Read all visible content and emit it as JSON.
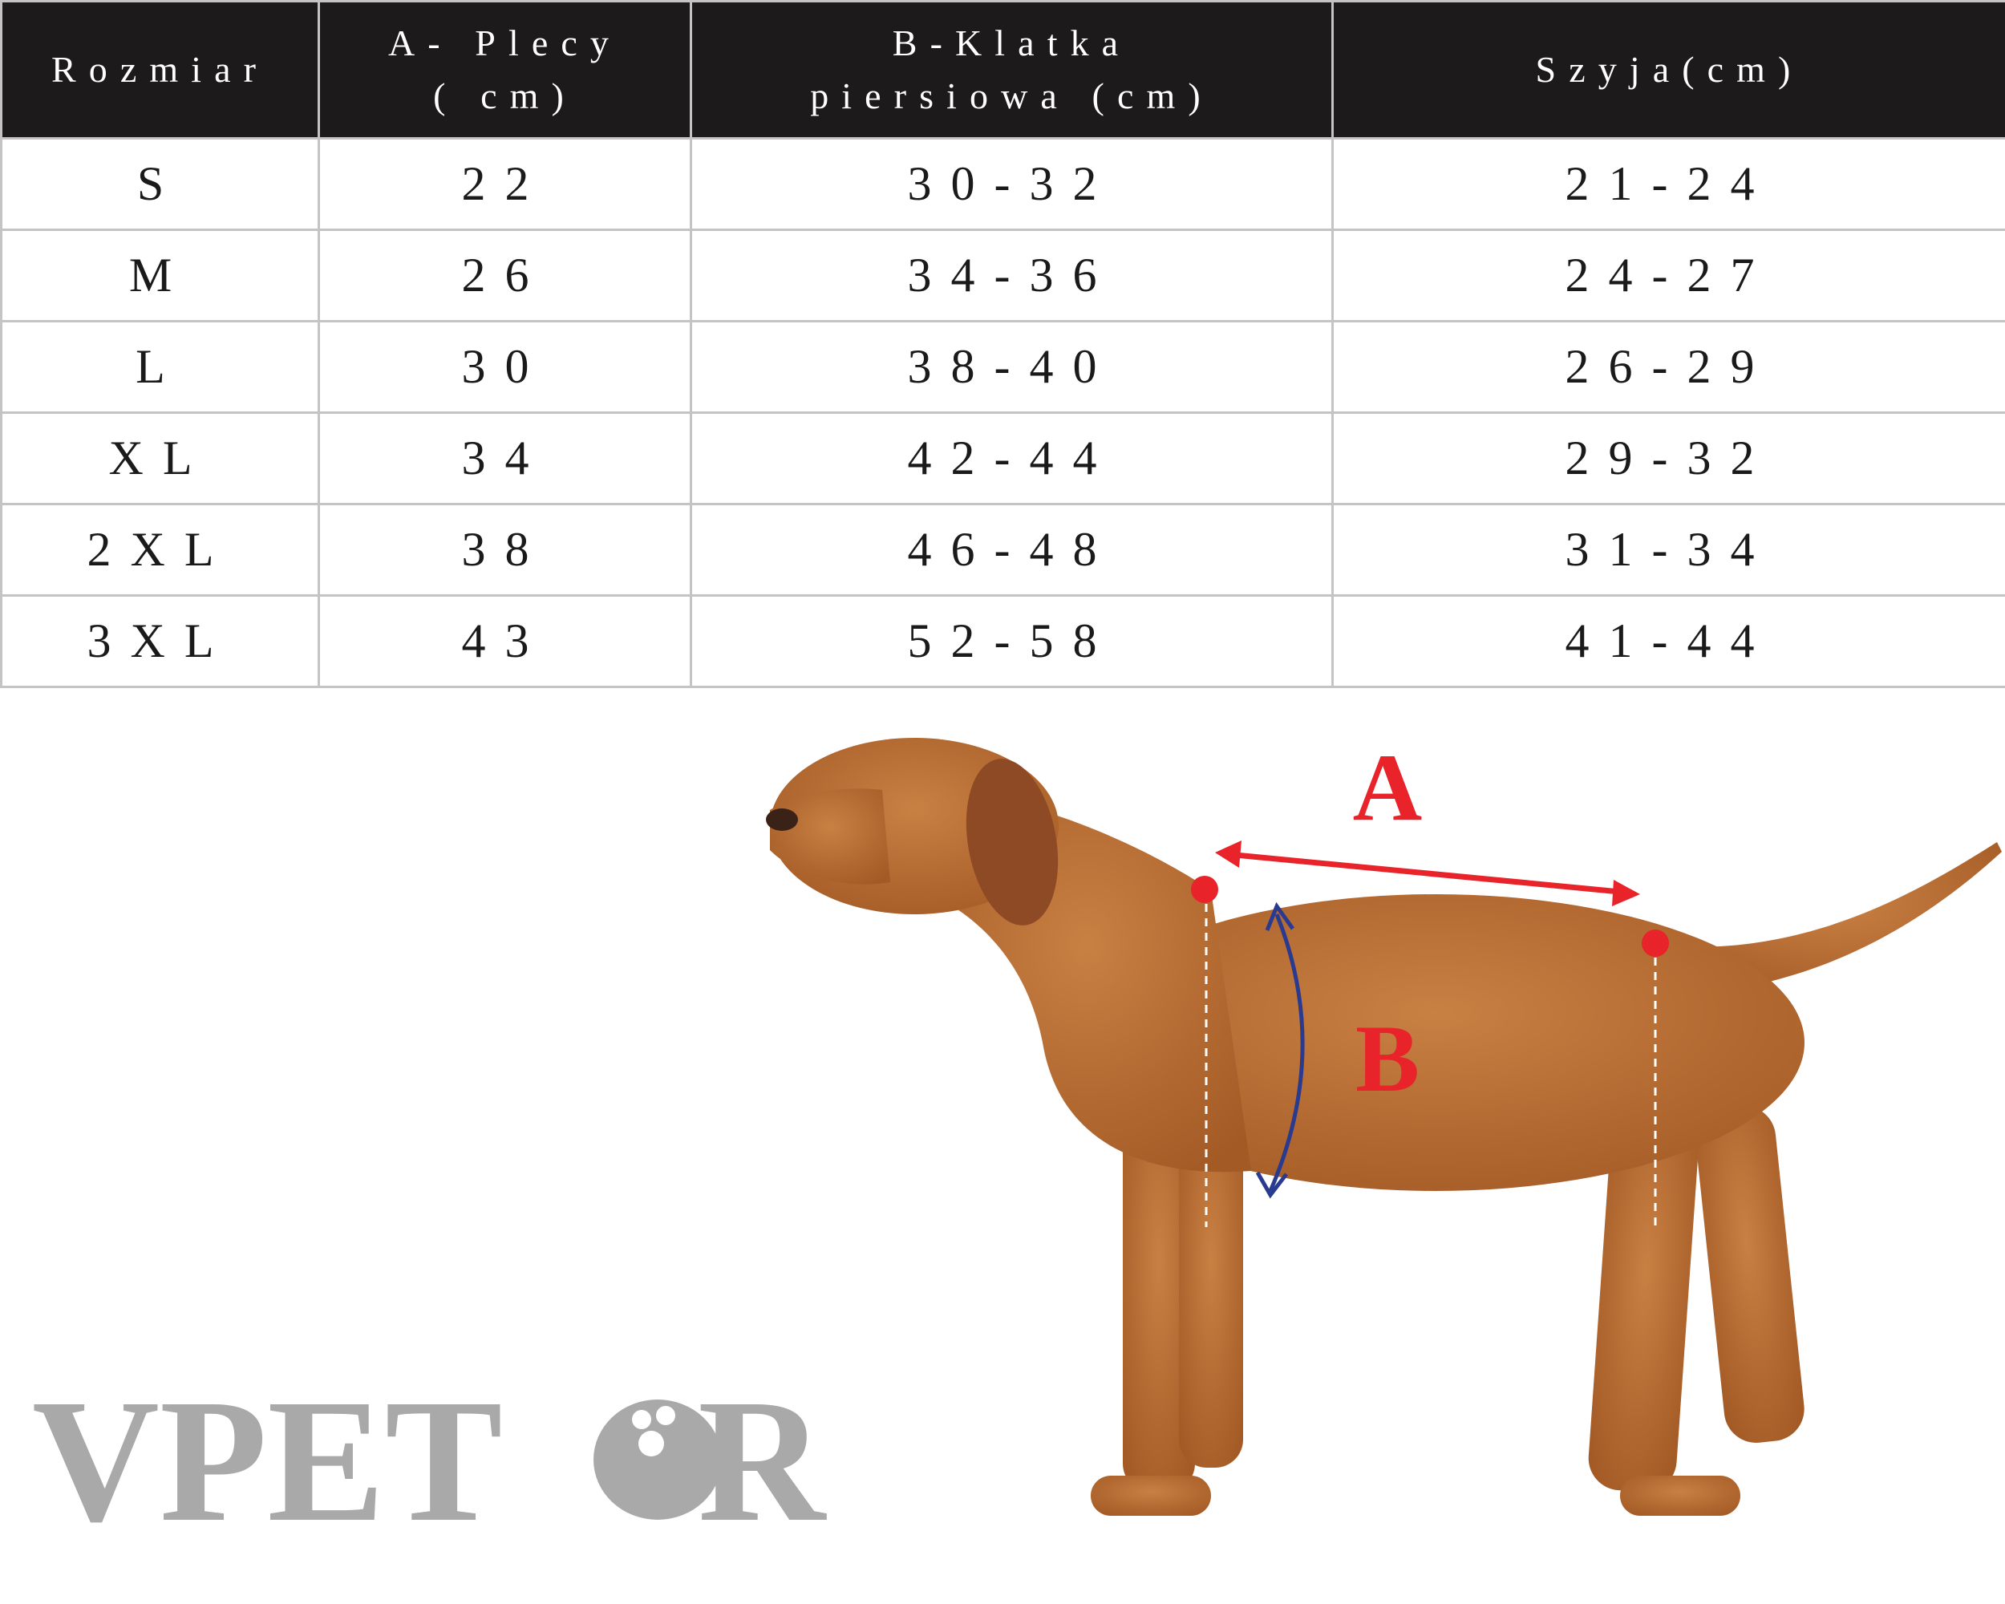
{
  "table": {
    "headers": [
      [
        "Rozmiar"
      ],
      [
        "A- Plecy",
        "( cm)"
      ],
      [
        "B-Klatka",
        "piersiowa (cm)"
      ],
      [
        "Szyja(cm)"
      ]
    ],
    "rows": [
      [
        "S",
        "22",
        "30-32",
        "21-24"
      ],
      [
        "M",
        "26",
        "34-36",
        "24-27"
      ],
      [
        "L",
        "30",
        "38-40",
        "26-29"
      ],
      [
        "XL",
        "34",
        "42-44",
        "29-32"
      ],
      [
        "2XL",
        "38",
        "46-48",
        "31-34"
      ],
      [
        "3XL",
        "43",
        "52-58",
        "41-44"
      ]
    ]
  },
  "diagram": {
    "label_a": "A",
    "label_b": "B"
  },
  "logo": {
    "left": "VPET",
    "right": "R"
  }
}
